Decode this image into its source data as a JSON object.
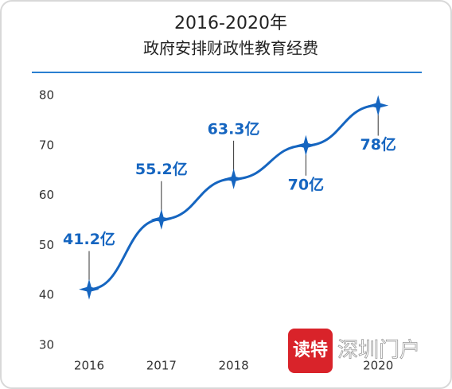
{
  "chart_data": {
    "type": "line",
    "title": "2016-2020年",
    "subtitle": "政府安排财政性教育经费",
    "categories": [
      "2016",
      "2017",
      "2018",
      null,
      "2020"
    ],
    "series": [
      {
        "color": "#1565c0",
        "values": [
          41.2,
          55.2,
          63.3,
          70,
          78
        ],
        "value_labels": [
          "41.2亿",
          "55.2亿",
          "63.3亿",
          "70亿",
          "78亿"
        ]
      }
    ],
    "ylim": [
      30,
      80
    ],
    "yticks": [
      30,
      40,
      50,
      60,
      70,
      80
    ],
    "watermark": [
      "读特",
      "深圳门户"
    ]
  }
}
